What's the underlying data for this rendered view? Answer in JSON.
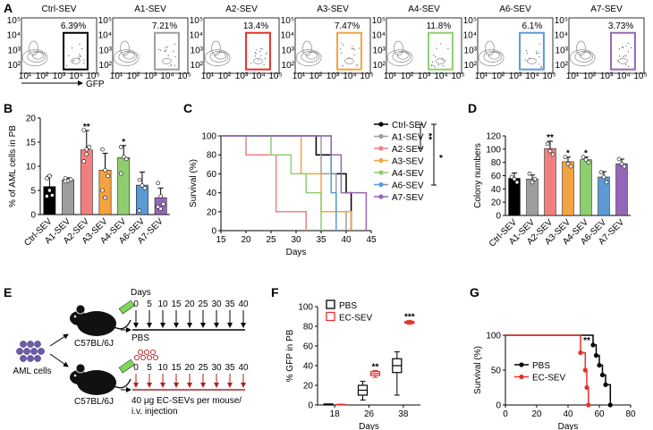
{
  "flow_panel": {
    "panel": "A",
    "x_label": "GFP",
    "xtick_labels": [
      "10¹",
      "10²",
      "10³",
      "10⁴",
      "10⁵"
    ],
    "ytick_labels": [
      "10²",
      "10³",
      "10⁴",
      "10⁵"
    ],
    "plots": [
      {
        "title": "Ctrl-SEV",
        "percent": "6.39%",
        "color": "#000000"
      },
      {
        "title": "A1-SEV",
        "percent": "7.21%",
        "color": "#9e9e9e"
      },
      {
        "title": "A2-SEV",
        "percent": "13.4%",
        "color": "#e8302a",
        "title_color": "#e8302a"
      },
      {
        "title": "A3-SEV",
        "percent": "7.47%",
        "color": "#f4a340"
      },
      {
        "title": "A4-SEV",
        "percent": "11.8%",
        "color": "#8fce6e"
      },
      {
        "title": "A6-SEV",
        "percent": "6.1%",
        "color": "#5b9bd5"
      },
      {
        "title": "A7-SEV",
        "percent": "3.73%",
        "color": "#9566b8"
      }
    ]
  },
  "chart_data": [
    {
      "panel": "B",
      "type": "bar",
      "ylabel": "% of AML cells in PB",
      "categories": [
        "Ctrl-SEV",
        "A1-SEV",
        "A2-SEV",
        "A3-SEV",
        "A4-SEV",
        "A6-SEV",
        "A7-SEV"
      ],
      "values": [
        5.8,
        7.2,
        13.4,
        9.2,
        11.8,
        6.1,
        3.5
      ],
      "errors": [
        2.2,
        0.4,
        4,
        3.5,
        2.5,
        2.7,
        2
      ],
      "points": [
        [
          7.5,
          5,
          4,
          3.8,
          8
        ],
        [
          7.5,
          7,
          7.3,
          6.9
        ],
        [
          17.5,
          13.5,
          14,
          11,
          12.5
        ],
        [
          13.5,
          9.2,
          8,
          5,
          3.5
        ],
        [
          14,
          12,
          11.5,
          8.5
        ],
        [
          7.2,
          6,
          5.5,
          0.8
        ],
        [
          6.5,
          3.8,
          2.2,
          1.6,
          1.2
        ]
      ],
      "colors": [
        "#000000",
        "#9e9e9e",
        "#f08080",
        "#f4a340",
        "#8fce6e",
        "#5b9bd5",
        "#9566b8"
      ],
      "significance": [
        null,
        null,
        "**",
        null,
        "*",
        null,
        null
      ],
      "ylim": [
        0,
        20
      ],
      "yticks": [
        0,
        5,
        10,
        15,
        20
      ]
    },
    {
      "panel": "C",
      "type": "line",
      "xlabel": "Days",
      "ylabel": "Survival (%)",
      "xlim": [
        15,
        45
      ],
      "xticks": [
        15,
        20,
        25,
        30,
        35,
        40,
        45
      ],
      "ylim": [
        0,
        100
      ],
      "yticks": [
        0,
        20,
        40,
        60,
        80,
        100
      ],
      "significance": [
        "**",
        "*"
      ],
      "series": [
        {
          "name": "Ctrl-SEV",
          "color": "#000000",
          "x": [
            15,
            34,
            34,
            37,
            37,
            40,
            40,
            41,
            41
          ],
          "values": [
            100,
            100,
            80,
            80,
            60,
            60,
            40,
            40,
            0
          ]
        },
        {
          "name": "A1-SEV",
          "color": "#9e9e9e",
          "x": [
            15,
            35,
            35,
            38,
            38,
            40,
            40
          ],
          "values": [
            100,
            100,
            60,
            60,
            20,
            20,
            0
          ]
        },
        {
          "name": "A2-SEV",
          "color": "#f08080",
          "x": [
            15,
            20,
            20,
            26,
            26,
            32,
            32
          ],
          "values": [
            100,
            100,
            80,
            80,
            20,
            20,
            0
          ]
        },
        {
          "name": "A3-SEV",
          "color": "#f4a340",
          "x": [
            15,
            31,
            31,
            35,
            35,
            41,
            41
          ],
          "values": [
            100,
            100,
            60,
            60,
            20,
            20,
            0
          ]
        },
        {
          "name": "A4-SEV",
          "color": "#8fce6e",
          "x": [
            15,
            25,
            25,
            29,
            29,
            32,
            32,
            35,
            35
          ],
          "values": [
            100,
            100,
            80,
            80,
            60,
            60,
            40,
            40,
            0
          ]
        },
        {
          "name": "A6-SEV",
          "color": "#5b9bd5",
          "x": [
            15,
            37,
            37,
            38,
            38
          ],
          "values": [
            100,
            100,
            40,
            40,
            0
          ]
        },
        {
          "name": "A7-SEV",
          "color": "#9566b8",
          "x": [
            15,
            37,
            37,
            39,
            39,
            44,
            44
          ],
          "values": [
            100,
            100,
            80,
            80,
            40,
            40,
            0
          ]
        }
      ]
    },
    {
      "panel": "D",
      "type": "bar",
      "ylabel": "Colony numbers",
      "categories": [
        "Ctrl-SEV",
        "A1-SEV",
        "A2-SEV",
        "A3-SEV",
        "A4-SEV",
        "A6-SEV",
        "A7-SEV"
      ],
      "values": [
        56,
        55,
        101,
        81,
        84,
        58,
        78
      ],
      "errors": [
        8,
        6,
        11,
        7,
        4,
        8,
        7
      ],
      "points": [
        [
          58,
          55,
          50
        ],
        [
          63,
          50,
          55
        ],
        [
          108,
          97,
          92
        ],
        [
          88,
          78,
          74
        ],
        [
          88,
          84,
          80
        ],
        [
          65,
          58,
          50
        ],
        [
          85,
          78,
          74
        ]
      ],
      "colors": [
        "#000000",
        "#9e9e9e",
        "#f08080",
        "#f4a340",
        "#8fce6e",
        "#5b9bd5",
        "#9566b8"
      ],
      "significance": [
        null,
        null,
        "**",
        "*",
        "*",
        null,
        null
      ],
      "ylim": [
        0,
        120
      ],
      "yticks": [
        0,
        20,
        40,
        60,
        80,
        100,
        120
      ]
    },
    {
      "panel": "F",
      "type": "box",
      "xlabel": "Days",
      "ylabel": "% GFP in PB",
      "categories": [
        18,
        26,
        38
      ],
      "ylim": [
        0,
        100
      ],
      "yticks": [
        0,
        20,
        40,
        60,
        80,
        100
      ],
      "significance": [
        null,
        "**",
        "***"
      ],
      "series": [
        {
          "name": "PBS",
          "color": "#000000",
          "min": [
            0,
            5,
            10
          ],
          "q1": [
            0,
            10,
            33
          ],
          "median": [
            0.5,
            15,
            40
          ],
          "q3": [
            1,
            20,
            47
          ],
          "max": [
            1,
            24,
            54
          ]
        },
        {
          "name": "EC-SEV",
          "color": "#e8302a",
          "min": [
            0,
            28,
            82
          ],
          "q1": [
            0,
            30,
            83
          ],
          "median": [
            0.3,
            32,
            84
          ],
          "q3": [
            0.6,
            34,
            85
          ],
          "max": [
            0.8,
            35,
            86
          ]
        }
      ]
    },
    {
      "panel": "G",
      "type": "line",
      "xlabel": "Days",
      "ylabel": "Survival (%)",
      "xlim": [
        0,
        80
      ],
      "xticks": [
        0,
        20,
        40,
        60,
        80
      ],
      "ylim": [
        0,
        100
      ],
      "yticks": [
        0,
        50,
        100
      ],
      "significance": [
        "**"
      ],
      "markers": true,
      "series": [
        {
          "name": "PBS",
          "color": "#000000",
          "x": [
            0,
            56,
            56,
            58,
            58,
            60,
            60,
            62,
            62,
            64,
            64,
            67,
            67
          ],
          "values": [
            100,
            100,
            86,
            86,
            71,
            71,
            57,
            57,
            43,
            43,
            29,
            29,
            0
          ]
        },
        {
          "name": "EC-SEV",
          "color": "#e8302a",
          "x": [
            0,
            48,
            48,
            51,
            51,
            52,
            52,
            53,
            53
          ],
          "values": [
            100,
            100,
            75,
            75,
            50,
            50,
            25,
            25,
            0
          ]
        }
      ]
    }
  ],
  "schematic": {
    "panel": "E",
    "cells_label": "AML cells",
    "mouse_label": "C57BL/6J",
    "days_label": "Days",
    "day_ticks": [
      0,
      5,
      10,
      15,
      20,
      25,
      30,
      35,
      40
    ],
    "control_label": "PBS",
    "treatment_label": [
      "40 μg EC-SEVs per mouse/",
      "i.v. injection"
    ],
    "treatment_color": "#b22222"
  }
}
